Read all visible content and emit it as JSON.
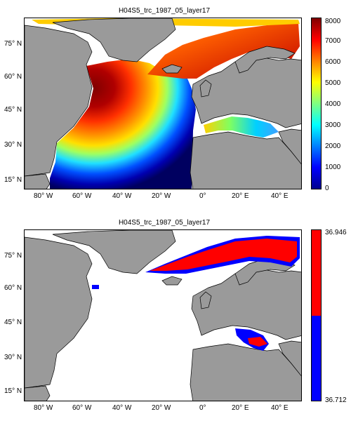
{
  "top_panel": {
    "title": "H04S5_trc_1987_05_layer17",
    "lat_labels": [
      "75° N",
      "60° N",
      "45° N",
      "30° N",
      "15° N"
    ],
    "lon_labels": [
      "80° W",
      "60° W",
      "40° W",
      "20° W",
      "0°",
      "20° E",
      "40° E"
    ],
    "colorbar": {
      "ticks": [
        "8000",
        "7000",
        "6000",
        "5000",
        "4000",
        "3000",
        "2000",
        "1000",
        "0"
      ],
      "colors": [
        "#00008f",
        "#0000ff",
        "#0080ff",
        "#00ffff",
        "#80ff80",
        "#ffff00",
        "#ff8000",
        "#ff0000",
        "#800000"
      ]
    }
  },
  "bottom_panel": {
    "title": "H04S5_trc_1987_05_layer17",
    "lat_labels": [
      "75° N",
      "60° N",
      "45° N",
      "30° N",
      "15° N"
    ],
    "lon_labels": [
      "80° W",
      "60° W",
      "40° W",
      "20° W",
      "0°",
      "20° E",
      "40° E"
    ],
    "colorbar": {
      "max_label": "36.946",
      "min_label": "36.712",
      "colors": [
        "#ff0000",
        "#0000ff"
      ]
    }
  },
  "colors": {
    "land": "#9a9a9a",
    "ocean_no_data": "#ffffff",
    "coast": "#000000"
  }
}
